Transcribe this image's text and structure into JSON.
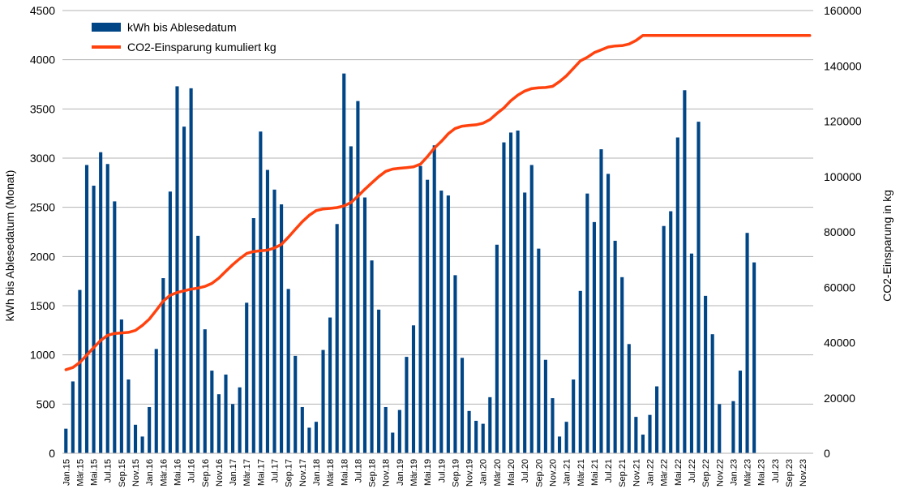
{
  "chart_data": {
    "type": "bar",
    "categories": [
      "Jan.15",
      "Feb.15",
      "Mär.15",
      "Apr.15",
      "Mai.15",
      "Jun.15",
      "Jul.15",
      "Aug.15",
      "Sep.15",
      "Okt.15",
      "Nov.15",
      "Dez.15",
      "Jan.16",
      "Feb.16",
      "Mär.16",
      "Apr.16",
      "Mai.16",
      "Jun.16",
      "Jul.16",
      "Aug.16",
      "Sep.16",
      "Okt.16",
      "Nov.16",
      "Dez.16",
      "Jan.17",
      "Feb.17",
      "Mär.17",
      "Apr.17",
      "Mai.17",
      "Jun.17",
      "Jul.17",
      "Aug.17",
      "Sep.17",
      "Okt.17",
      "Nov.17",
      "Dez.17",
      "Jan.18",
      "Feb.18",
      "Mär.18",
      "Apr.18",
      "Mai.18",
      "Jun.18",
      "Jul.18",
      "Aug.18",
      "Sep.18",
      "Okt.18",
      "Nov.18",
      "Dez.18",
      "Jan.19",
      "Feb.19",
      "Mär.19",
      "Apr.19",
      "Mai.19",
      "Jun.19",
      "Jul.19",
      "Aug.19",
      "Sep.19",
      "Okt.19",
      "Nov.19",
      "Dez.19",
      "Jan.20",
      "Feb.20",
      "Mär.20",
      "Apr.20",
      "Mai.20",
      "Jun.20",
      "Jul.20",
      "Aug.20",
      "Sep.20",
      "Okt.20",
      "Nov.20",
      "Dez.20",
      "Jan.21",
      "Feb.21",
      "Mär.21",
      "Apr.21",
      "Mai.21",
      "Jun.21",
      "Jul.21",
      "Aug.21",
      "Sep.21",
      "Okt.21",
      "Nov.21",
      "Dez.21",
      "Jan.22",
      "Feb.22",
      "Mär.22",
      "Apr.22",
      "Mai.22",
      "Jun.22",
      "Jul.22",
      "Aug.22",
      "Sep.22",
      "Okt.22",
      "Nov.22",
      "Dez.22",
      "Jan.23",
      "Feb.23",
      "Mär.23",
      "Apr.23",
      "Mai.23",
      "Jun.23",
      "Jul.23",
      "Aug.23",
      "Sep.23",
      "Okt.23",
      "Nov.23",
      "Dez.23"
    ],
    "series": [
      {
        "name": "kWh bis Ablesedatum",
        "axis": "left",
        "type": "bar",
        "color": "#004586",
        "values": [
          250,
          730,
          1660,
          2930,
          2720,
          3060,
          2940,
          2560,
          1360,
          750,
          290,
          170,
          470,
          1060,
          1780,
          2660,
          3730,
          3320,
          3710,
          2210,
          1260,
          840,
          600,
          800,
          500,
          670,
          1530,
          2390,
          3270,
          2880,
          2680,
          2530,
          1670,
          990,
          470,
          260,
          320,
          1050,
          1380,
          2330,
          3860,
          3120,
          3580,
          2600,
          1960,
          1460,
          470,
          210,
          440,
          980,
          1300,
          2920,
          2780,
          3130,
          2670,
          2620,
          1810,
          970,
          430,
          330,
          300,
          570,
          2120,
          3160,
          3260,
          3280,
          2650,
          2930,
          2080,
          950,
          560,
          170,
          320,
          750,
          1650,
          2640,
          2350,
          3090,
          2840,
          2160,
          1790,
          1110,
          370,
          190,
          390,
          680,
          2310,
          2460,
          3210,
          3690,
          2030,
          3370,
          1600,
          1210,
          500,
          null,
          530,
          840,
          2240,
          1940,
          null,
          null,
          null,
          null,
          null,
          null,
          null,
          null
        ]
      },
      {
        "name": "CO2-Einsparung kumuliert kg",
        "axis": "right",
        "type": "line",
        "color": "#ff420e",
        "values": [
          30200,
          31000,
          32800,
          35500,
          38200,
          40800,
          42600,
          43300,
          43500,
          43700,
          44400,
          46200,
          48500,
          51700,
          55000,
          57100,
          58100,
          58700,
          59300,
          59700,
          60300,
          61400,
          63300,
          65800,
          68200,
          70300,
          72200,
          72900,
          73200,
          73400,
          74200,
          75500,
          78100,
          80900,
          83700,
          86000,
          87700,
          88300,
          88500,
          88800,
          89400,
          90600,
          92900,
          95400,
          97700,
          100000,
          101900,
          102700,
          103000,
          103200,
          103500,
          104500,
          107200,
          110300,
          112700,
          115500,
          117400,
          118200,
          118500,
          118700,
          119300,
          120600,
          122800,
          124800,
          127400,
          129400,
          130900,
          131800,
          132100,
          132200,
          132600,
          134300,
          136400,
          139100,
          141800,
          143100,
          144800,
          145800,
          146800,
          147200,
          147300,
          147900,
          149200,
          151000,
          151000,
          151000,
          151000,
          151000,
          151000,
          151000,
          151000,
          151000,
          151000,
          151000,
          151000,
          151000,
          151000,
          151000,
          151000,
          151000,
          151000,
          151000,
          151000,
          151000,
          151000,
          151000,
          151000,
          151000
        ]
      }
    ],
    "ylabel": "kWh bis Ablesedatum (Monat)",
    "ylabel_right": "CO2-Einsparung in kg",
    "ylim": [
      0,
      4500
    ],
    "ylim_right": [
      0,
      160000
    ],
    "yticks": [
      "0",
      "500",
      "1000",
      "1500",
      "2000",
      "2500",
      "3000",
      "3500",
      "4000",
      "4500"
    ],
    "yticks_right": [
      "0",
      "20000",
      "40000",
      "60000",
      "80000",
      "100000",
      "120000",
      "140000",
      "160000"
    ],
    "xtick_labels": [
      "Jan.15",
      "Mär.15",
      "Mai.15",
      "Jul.15",
      "Sep.15",
      "Nov.15",
      "Jan.16",
      "Mär.16",
      "Mai.16",
      "Jul.16",
      "Sep.16",
      "Nov.16",
      "Jan.17",
      "Mär.17",
      "Mai.17",
      "Jul.17",
      "Sep.17",
      "Nov.17",
      "Jan.18",
      "Mär.18",
      "Mai.18",
      "Jul.18",
      "Sep.18",
      "Nov.18",
      "Jan.19",
      "Mär.19",
      "Mai.19",
      "Jul.19",
      "Sep.19",
      "Nov.19",
      "Jan.20",
      "Mär.20",
      "Mai.20",
      "Jul.20",
      "Sep.20",
      "Nov.20",
      "Jan.21",
      "Mär.21",
      "Mai.21",
      "Jul.21",
      "Sep.21",
      "Nov.21",
      "Jan.22",
      "Mär.22",
      "Mai.22",
      "Jul.22",
      "Sep.22",
      "Nov.22",
      "Jan.23",
      "Mär.23",
      "Mai.23",
      "Jul.23",
      "Sep.23",
      "Nov.23"
    ],
    "grid": "horizontal",
    "legend_position": "top-left"
  }
}
